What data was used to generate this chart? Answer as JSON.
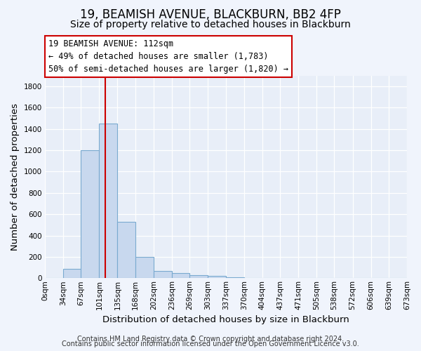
{
  "title": "19, BEAMISH AVENUE, BLACKBURN, BB2 4FP",
  "subtitle": "Size of property relative to detached houses in Blackburn",
  "xlabel": "Distribution of detached houses by size in Blackburn",
  "ylabel": "Number of detached properties",
  "footer_line1": "Contains HM Land Registry data © Crown copyright and database right 2024.",
  "footer_line2": "Contains public sector information licensed under the Open Government Licence v3.0.",
  "bin_edges": [
    0,
    34,
    67,
    101,
    135,
    168,
    202,
    236,
    269,
    303,
    337,
    370,
    404,
    437,
    471,
    505,
    538,
    572,
    606,
    639,
    673
  ],
  "bin_labels": [
    "0sqm",
    "34sqm",
    "67sqm",
    "101sqm",
    "135sqm",
    "168sqm",
    "202sqm",
    "236sqm",
    "269sqm",
    "303sqm",
    "337sqm",
    "370sqm",
    "404sqm",
    "437sqm",
    "471sqm",
    "505sqm",
    "538sqm",
    "572sqm",
    "606sqm",
    "639sqm",
    "673sqm"
  ],
  "bar_heights": [
    0,
    90,
    1200,
    1450,
    530,
    200,
    65,
    50,
    30,
    20,
    10,
    5,
    5,
    0,
    0,
    0,
    0,
    0,
    0,
    0
  ],
  "bar_color": "#c8d8ee",
  "bar_edge_color": "#7aaad0",
  "property_size": 112,
  "vline_color": "#cc0000",
  "annotation_text_line1": "19 BEAMISH AVENUE: 112sqm",
  "annotation_text_line2": "← 49% of detached houses are smaller (1,783)",
  "annotation_text_line3": "50% of semi-detached houses are larger (1,820) →",
  "annotation_box_color": "#ffffff",
  "annotation_box_edge_color": "#cc0000",
  "ylim": [
    0,
    1900
  ],
  "yticks": [
    0,
    200,
    400,
    600,
    800,
    1000,
    1200,
    1400,
    1600,
    1800
  ],
  "bg_color": "#f0f4fc",
  "plot_bg_color": "#e8eef8",
  "grid_color": "#ffffff",
  "title_fontsize": 12,
  "subtitle_fontsize": 10,
  "axis_label_fontsize": 9.5,
  "tick_fontsize": 7.5,
  "footer_fontsize": 7,
  "annotation_fontsize": 8.5
}
